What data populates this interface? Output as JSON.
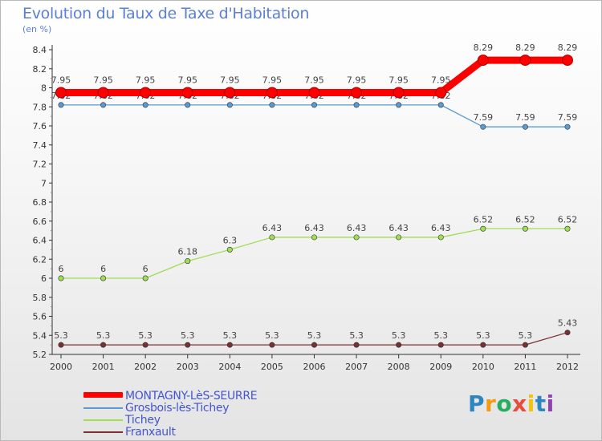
{
  "title": "Evolution du Taux de Taxe d'Habitation",
  "unit_label": "(en %)",
  "chart_data": {
    "type": "line",
    "categories": [
      "2000",
      "2001",
      "2002",
      "2003",
      "2004",
      "2005",
      "2006",
      "2007",
      "2008",
      "2009",
      "2010",
      "2011",
      "2012"
    ],
    "ylim": [
      5.2,
      8.4
    ],
    "yticks": [
      "5.2",
      "5.4",
      "5.6",
      "5.8",
      "6",
      "6.2",
      "6.4",
      "6.6",
      "6.8",
      "7",
      "7.2",
      "7.4",
      "7.6",
      "7.8",
      "8",
      "8.2",
      "8.4"
    ],
    "series": [
      {
        "name": "MONTAGNY-LèS-SEURRE",
        "color": "#ff0000",
        "values": [
          7.95,
          7.95,
          7.95,
          7.95,
          7.95,
          7.95,
          7.95,
          7.95,
          7.95,
          7.95,
          8.29,
          8.29,
          8.29
        ],
        "labels": [
          "7.95",
          "7.95",
          "7.95",
          "7.95",
          "7.95",
          "7.95",
          "7.95",
          "7.95",
          "7.95",
          "7.95",
          "8.29",
          "8.29",
          "8.29"
        ]
      },
      {
        "name": "Grosbois-lès-Tichey",
        "color": "#5a9bd0",
        "values": [
          7.82,
          7.82,
          7.82,
          7.82,
          7.82,
          7.82,
          7.82,
          7.82,
          7.82,
          7.82,
          7.59,
          7.59,
          7.59
        ],
        "labels": [
          "7.82",
          "7.82",
          "7.82",
          "7.82",
          "7.82",
          "7.82",
          "7.82",
          "7.82",
          "7.82",
          "7.82",
          "7.59",
          "7.59",
          "7.59"
        ]
      },
      {
        "name": "Tichey",
        "color": "#9fdd55",
        "values": [
          6,
          6,
          6,
          6.18,
          6.3,
          6.43,
          6.43,
          6.43,
          6.43,
          6.43,
          6.52,
          6.52,
          6.52
        ],
        "labels": [
          "6",
          "6",
          "6",
          "6.18",
          "6.3",
          "6.43",
          "6.43",
          "6.43",
          "6.43",
          "6.43",
          "6.52",
          "6.52",
          "6.52"
        ]
      },
      {
        "name": "Franxault",
        "color": "#7a3030",
        "values": [
          5.3,
          5.3,
          5.3,
          5.3,
          5.3,
          5.3,
          5.3,
          5.3,
          5.3,
          5.3,
          5.3,
          5.3,
          5.43
        ],
        "labels": [
          "5.3",
          "5.3",
          "5.3",
          "5.3",
          "5.3",
          "5.3",
          "5.3",
          "5.3",
          "5.3",
          "5.3",
          "5.3",
          "5.3",
          "5.43"
        ]
      }
    ],
    "grid": false,
    "legend_position": "bottom-left"
  },
  "logo": {
    "letters": [
      "P",
      "r",
      "o",
      "x",
      "i",
      "t",
      "i"
    ],
    "colors": [
      "#2e86c1",
      "#f39c12",
      "#27ae60",
      "#e74c3c",
      "#f1c40f",
      "#2e86c1",
      "#8e44ad"
    ]
  }
}
